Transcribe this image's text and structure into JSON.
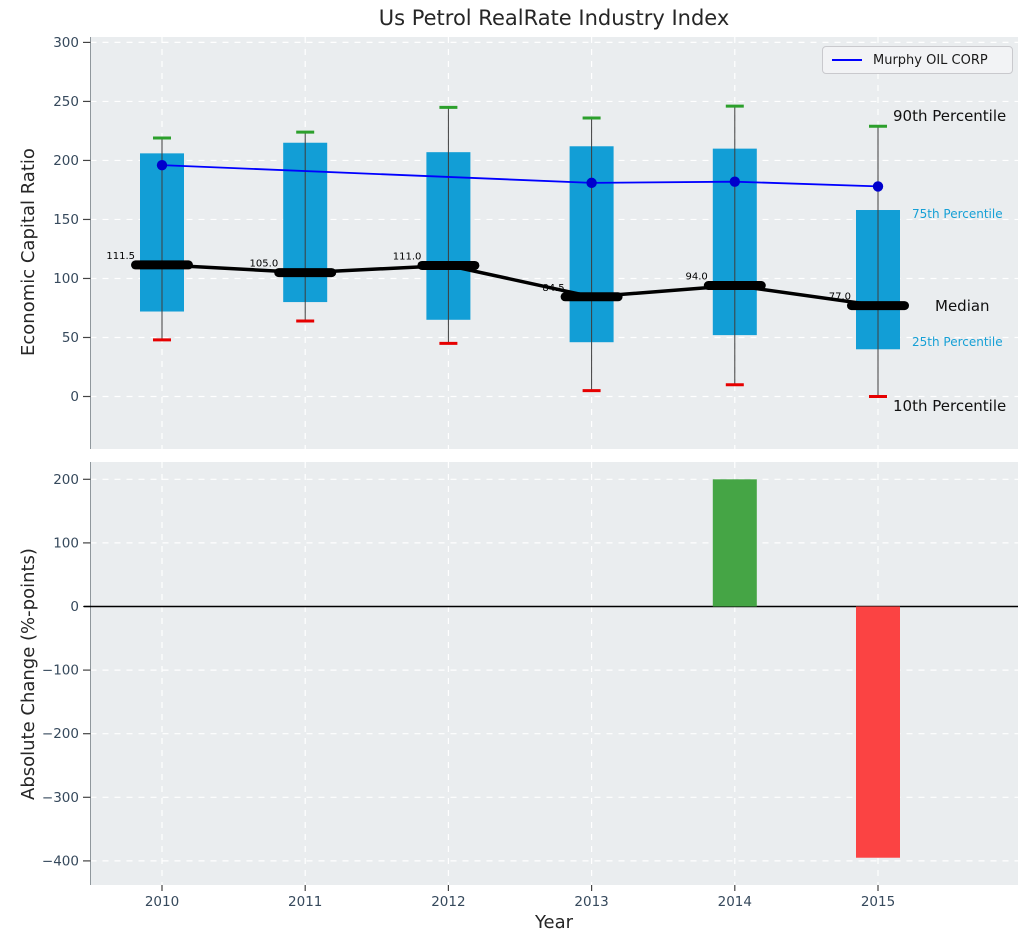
{
  "legend": {
    "label": "Murphy OIL CORP"
  },
  "annotations": [
    {
      "text": "90th Percentile",
      "tone": "dark"
    },
    {
      "text": "75th Percentile",
      "tone": "cyan"
    },
    {
      "text": "Median",
      "tone": "dark"
    },
    {
      "text": "25th Percentile",
      "tone": "cyan"
    },
    {
      "text": "10th Percentile",
      "tone": "dark"
    }
  ],
  "colors": {
    "box": "#129ed6",
    "cyan_text": "#16a0d6",
    "median": "#000000",
    "murphy_line": "#0000ff",
    "murphy_marker": "#0000cc",
    "cap_high": "#2ca02c",
    "cap_low": "#e60000",
    "whisker": "#3d3d3d",
    "bar_pos": "#45a545",
    "bar_neg": "#fb4343",
    "panel_bg": "#eaedef",
    "grid": "#ffffff",
    "tick_text": "#36495c",
    "zero_line": "#000000"
  },
  "chart_data": [
    {
      "type": "box",
      "title": "Us Petrol RealRate Industry Index",
      "ylabel": "Economic Capital Ratio",
      "ylim": [
        -45,
        305
      ],
      "grid": "dashed-white",
      "legend_position": "upper-right",
      "yticks": [
        {
          "v": 300,
          "label": "300"
        },
        {
          "v": 250,
          "label": "250"
        },
        {
          "v": 200,
          "label": "200"
        },
        {
          "v": 150,
          "label": "150"
        },
        {
          "v": 100,
          "label": "100"
        },
        {
          "v": 50,
          "label": "50"
        },
        {
          "v": 0,
          "label": "0"
        }
      ],
      "categories": [
        "2010",
        "2011",
        "2012",
        "2013",
        "2014",
        "2015"
      ],
      "boxes": [
        {
          "year": "2010",
          "p10": 48,
          "p25": 72,
          "median": 111.5,
          "p75": 206,
          "p90": 219,
          "median_label": "111.5"
        },
        {
          "year": "2011",
          "p10": 64,
          "p25": 80,
          "median": 105.0,
          "p75": 215,
          "p90": 224,
          "median_label": "105.0"
        },
        {
          "year": "2012",
          "p10": 45,
          "p25": 65,
          "median": 111.0,
          "p75": 207,
          "p90": 245,
          "median_label": "111.0"
        },
        {
          "year": "2013",
          "p10": 5,
          "p25": 46,
          "median": 84.5,
          "p75": 212,
          "p90": 236,
          "median_label": "84.5"
        },
        {
          "year": "2014",
          "p10": 10,
          "p25": 52,
          "median": 94.0,
          "p75": 210,
          "p90": 246,
          "median_label": "94.0"
        },
        {
          "year": "2015",
          "p10": 0,
          "p25": 40,
          "median": 77.0,
          "p75": 158,
          "p90": 229,
          "median_label": "77.0"
        }
      ],
      "line_series": {
        "name": "Murphy OIL CORP",
        "points": [
          {
            "year": "2010",
            "value": 196
          },
          {
            "year": "2013",
            "value": 181
          },
          {
            "year": "2014",
            "value": 182
          },
          {
            "year": "2015",
            "value": 178
          }
        ]
      }
    },
    {
      "type": "bar",
      "ylabel": "Absolute Change (%-points)",
      "xlabel": "Year",
      "ylim": [
        -440,
        228
      ],
      "grid": "dashed-white",
      "yticks": [
        {
          "v": 200,
          "label": "200"
        },
        {
          "v": 100,
          "label": "100"
        },
        {
          "v": 0,
          "label": "0"
        },
        {
          "v": -100,
          "label": "−100"
        },
        {
          "v": -200,
          "label": "−200"
        },
        {
          "v": -300,
          "label": "−300"
        },
        {
          "v": -400,
          "label": "−400"
        }
      ],
      "categories": [
        "2010",
        "2011",
        "2012",
        "2013",
        "2014",
        "2015"
      ],
      "values": [
        null,
        null,
        null,
        null,
        200,
        -395
      ]
    }
  ]
}
